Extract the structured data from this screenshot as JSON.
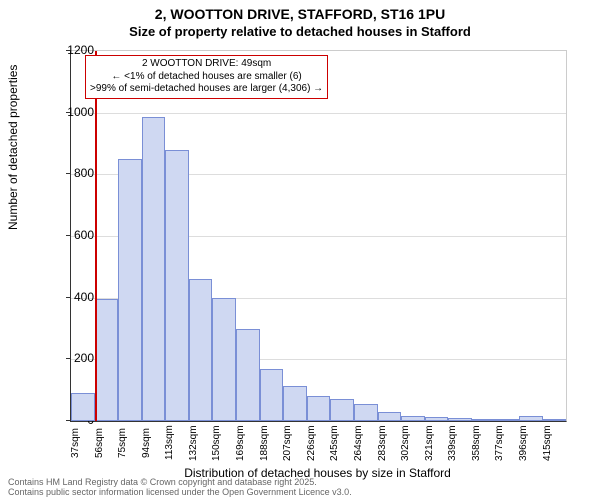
{
  "titles": {
    "line1": "2, WOOTTON DRIVE, STAFFORD, ST16 1PU",
    "line2": "Size of property relative to detached houses in Stafford"
  },
  "axes": {
    "ylabel": "Number of detached properties",
    "xlabel": "Distribution of detached houses by size in Stafford",
    "ylim": [
      0,
      1200
    ],
    "ytick_step": 200,
    "yticks": [
      0,
      200,
      400,
      600,
      800,
      1000,
      1200
    ]
  },
  "chart": {
    "type": "histogram",
    "bar_fill": "#cfd8f2",
    "bar_border": "#7a8fd6",
    "grid_color": "#dddddd",
    "background": "#ffffff",
    "categories": [
      "37sqm",
      "56sqm",
      "75sqm",
      "94sqm",
      "113sqm",
      "132sqm",
      "150sqm",
      "169sqm",
      "188sqm",
      "207sqm",
      "226sqm",
      "245sqm",
      "264sqm",
      "283sqm",
      "302sqm",
      "321sqm",
      "339sqm",
      "358sqm",
      "377sqm",
      "396sqm",
      "415sqm"
    ],
    "values": [
      90,
      395,
      850,
      985,
      880,
      460,
      400,
      300,
      170,
      115,
      80,
      70,
      55,
      30,
      15,
      12,
      10,
      8,
      6,
      15,
      4
    ]
  },
  "marker": {
    "vline_color": "#cc0000",
    "vline_bin_index": 0,
    "annotation": {
      "l1": "2 WOOTTON DRIVE: 49sqm",
      "l2": "← <1% of detached houses are smaller (6)",
      "l3": ">99% of semi-detached houses are larger (4,306) →"
    }
  },
  "footer": {
    "l1": "Contains HM Land Registry data © Crown copyright and database right 2025.",
    "l2": "Contains public sector information licensed under the Open Government Licence v3.0."
  }
}
